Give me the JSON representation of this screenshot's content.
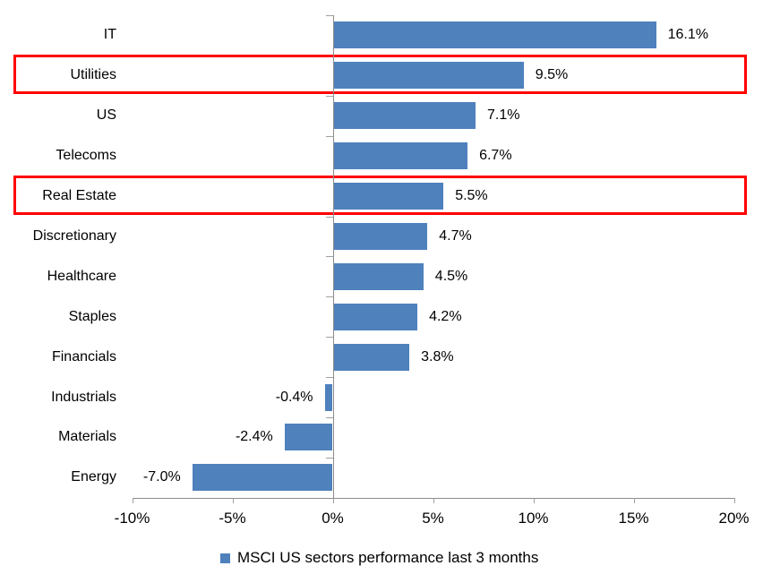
{
  "chart_data": {
    "type": "bar",
    "orientation": "horizontal",
    "title": "",
    "categories": [
      "IT",
      "Utilities",
      "US",
      "Telecoms",
      "Real Estate",
      "Discretionary",
      "Healthcare",
      "Staples",
      "Financials",
      "Industrials",
      "Materials",
      "Energy"
    ],
    "values": [
      16.1,
      9.5,
      7.1,
      6.7,
      5.5,
      4.7,
      4.5,
      4.2,
      3.8,
      -0.4,
      -2.4,
      -7.0
    ],
    "data_labels": [
      "16.1%",
      "9.5%",
      "7.1%",
      "6.7%",
      "5.5%",
      "4.7%",
      "4.5%",
      "4.2%",
      "3.8%",
      "-0.4%",
      "-2.4%",
      "-7.0%"
    ],
    "highlighted_categories": [
      "Utilities",
      "Real Estate"
    ],
    "x_ticks": [
      {
        "value": -10,
        "label": "-10%"
      },
      {
        "value": -5,
        "label": "-5%"
      },
      {
        "value": 0,
        "label": "0%"
      },
      {
        "value": 5,
        "label": "5%"
      },
      {
        "value": 10,
        "label": "10%"
      },
      {
        "value": 15,
        "label": "15%"
      },
      {
        "value": 20,
        "label": "20%"
      }
    ],
    "xlim": [
      -10,
      20
    ],
    "grid": false,
    "legend_position": "bottom-center",
    "legend": {
      "label": "MSCI US sectors performance last 3 months",
      "marker": "square"
    },
    "colors": {
      "bar": "#4F81BD",
      "highlight_border": "#FF0000",
      "axis": "#8C8C8C",
      "text": "#000000"
    }
  }
}
